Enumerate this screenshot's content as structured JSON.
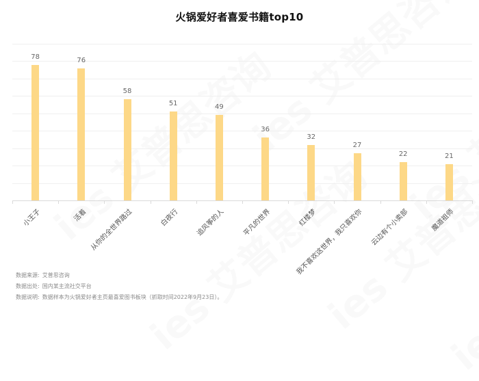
{
  "title": "火锅爱好者喜爱书籍top10",
  "colors": {
    "bar": "#FDD887",
    "gridline": "#efefef",
    "axis": "#d9d9d9",
    "label": "#666666"
  },
  "watermark": "ies 艾普思咨询",
  "chart_data": {
    "type": "bar",
    "title": "火锅爱好者喜爱书籍top10",
    "xlabel": "",
    "ylabel": "",
    "ylim": [
      0,
      90
    ],
    "grid": true,
    "legend": "none",
    "categories": [
      "小王子",
      "活着",
      "从你的全世界路过",
      "白夜行",
      "追风筝的人",
      "平凡的世界",
      "红楼梦",
      "我不喜欢这世界，我只喜欢你",
      "云边有个小卖部",
      "魔道祖师"
    ],
    "values": [
      78,
      76,
      58,
      51,
      49,
      36,
      32,
      27,
      22,
      21
    ]
  },
  "notes": [
    {
      "key": "数据来源:",
      "value": "艾普思咨询"
    },
    {
      "key": "数据出处:",
      "value": "国内某主流社交平台"
    },
    {
      "key": "数据说明:",
      "value": "数据样本为火锅爱好者主页最喜爱图书板块（抓取时间2022年9月23日）。"
    }
  ]
}
